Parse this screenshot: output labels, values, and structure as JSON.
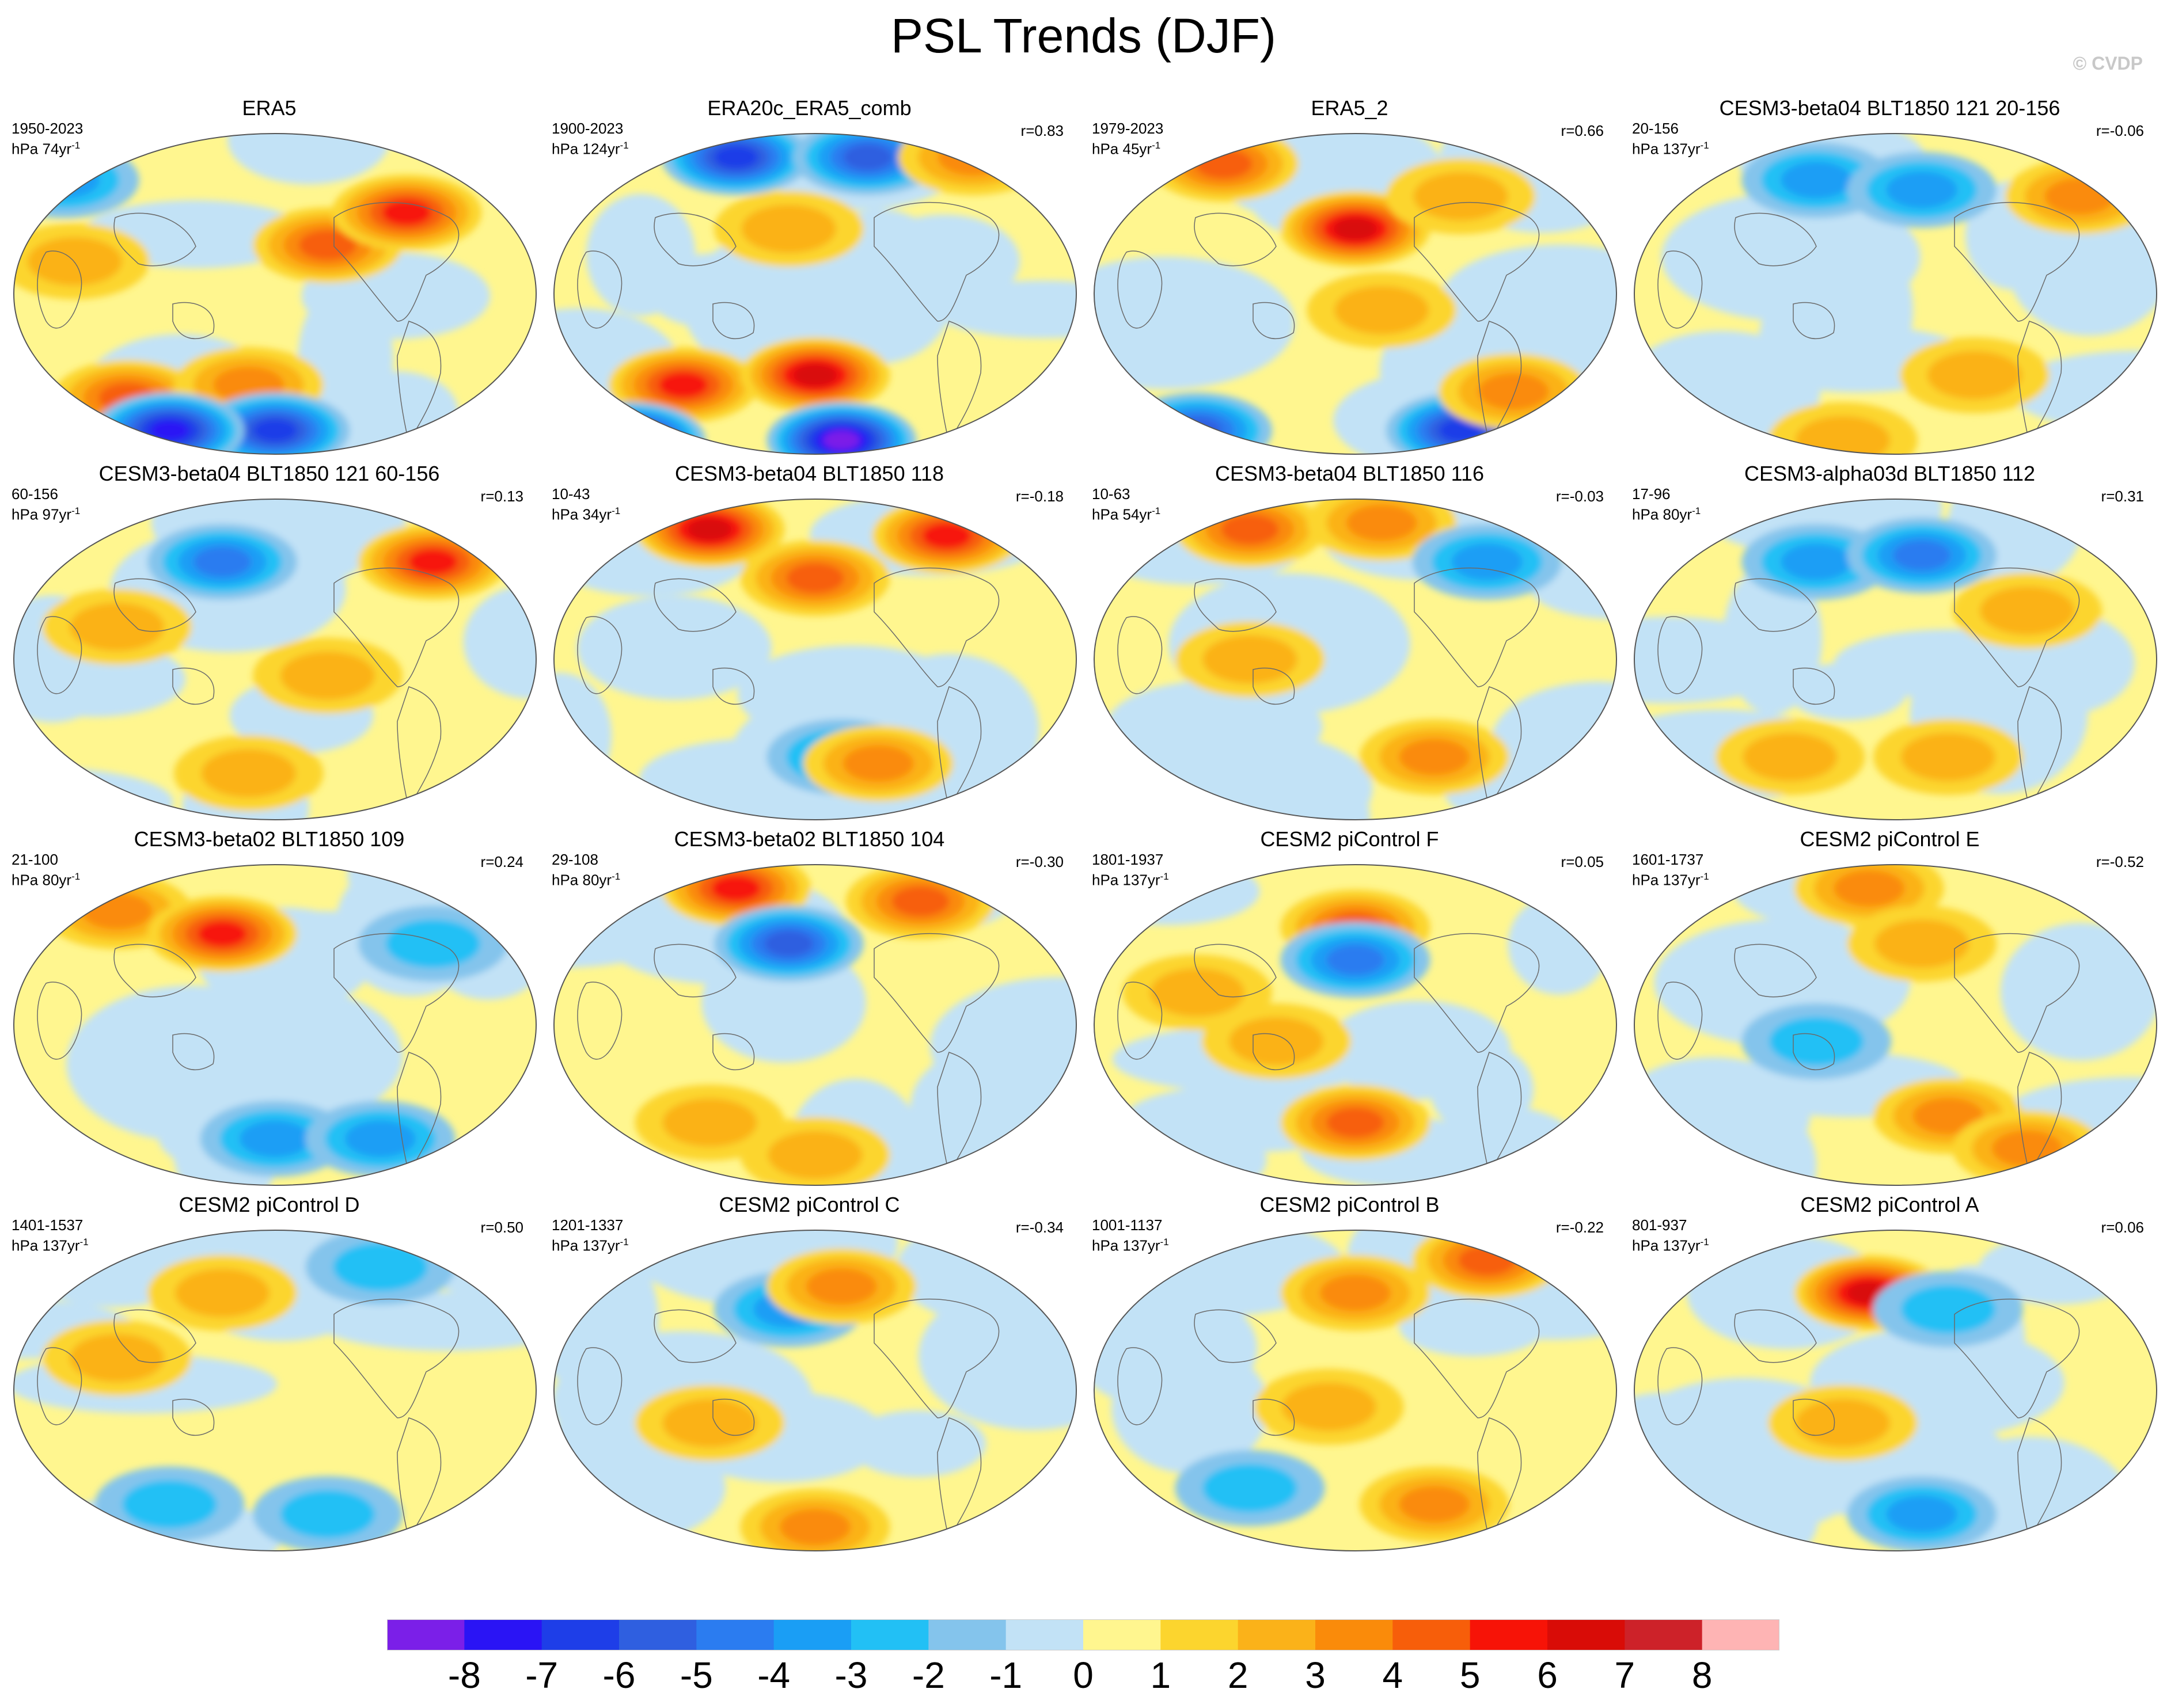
{
  "title": "PSL Trends (DJF)",
  "watermark": "© CVDP",
  "colorbar": {
    "labels": [
      "-8",
      "-7",
      "-6",
      "-5",
      "-4",
      "-3",
      "-2",
      "-1",
      "0",
      "1",
      "2",
      "3",
      "4",
      "5",
      "6",
      "7",
      "8"
    ],
    "colors": [
      "#7b1fe8",
      "#2a14f5",
      "#1e3ee8",
      "#2f5fe0",
      "#2b7cf0",
      "#1a9ef5",
      "#22c0f5",
      "#84c4ec",
      "#c2e2f6",
      "#fff68f",
      "#fcd52e",
      "#fbb219",
      "#fa8b0a",
      "#f75e0a",
      "#f71307",
      "#d90c07",
      "#cd2229",
      "#feb4b4"
    ]
  },
  "panels": [
    {
      "title": "ERA5",
      "years": "1950-2023",
      "unit": "hPa 74yr",
      "unit_exp": "-1",
      "r": ""
    },
    {
      "title": "ERA20c_ERA5_comb",
      "years": "1900-2023",
      "unit": "hPa 124yr",
      "unit_exp": "-1",
      "r": "r=0.83"
    },
    {
      "title": "ERA5_2",
      "years": "1979-2023",
      "unit": "hPa 45yr",
      "unit_exp": "-1",
      "r": "r=0.66"
    },
    {
      "title": "CESM3-beta04 BLT1850 121 20-156",
      "years": "20-156",
      "unit": "hPa 137yr",
      "unit_exp": "-1",
      "r": "r=-0.06"
    },
    {
      "title": "CESM3-beta04 BLT1850 121 60-156",
      "years": "60-156",
      "unit": "hPa 97yr",
      "unit_exp": "-1",
      "r": "r=0.13"
    },
    {
      "title": "CESM3-beta04 BLT1850 118",
      "years": "10-43",
      "unit": "hPa 34yr",
      "unit_exp": "-1",
      "r": "r=-0.18"
    },
    {
      "title": "CESM3-beta04 BLT1850 116",
      "years": "10-63",
      "unit": "hPa 54yr",
      "unit_exp": "-1",
      "r": "r=-0.03"
    },
    {
      "title": "CESM3-alpha03d BLT1850 112",
      "years": "17-96",
      "unit": "hPa 80yr",
      "unit_exp": "-1",
      "r": "r=0.31"
    },
    {
      "title": "CESM3-beta02 BLT1850 109",
      "years": "21-100",
      "unit": "hPa 80yr",
      "unit_exp": "-1",
      "r": "r=0.24"
    },
    {
      "title": "CESM3-beta02 BLT1850 104",
      "years": "29-108",
      "unit": "hPa 80yr",
      "unit_exp": "-1",
      "r": "r=-0.30"
    },
    {
      "title": "CESM2 piControl F",
      "years": "1801-1937",
      "unit": "hPa 137yr",
      "unit_exp": "-1",
      "r": "r=0.05"
    },
    {
      "title": "CESM2 piControl E",
      "years": "1601-1737",
      "unit": "hPa 137yr",
      "unit_exp": "-1",
      "r": "r=-0.52"
    },
    {
      "title": "CESM2 piControl D",
      "years": "1401-1537",
      "unit": "hPa 137yr",
      "unit_exp": "-1",
      "r": "r=0.50"
    },
    {
      "title": "CESM2 piControl C",
      "years": "1201-1337",
      "unit": "hPa 137yr",
      "unit_exp": "-1",
      "r": "r=-0.34"
    },
    {
      "title": "CESM2 piControl B",
      "years": "1001-1137",
      "unit": "hPa 137yr",
      "unit_exp": "-1",
      "r": "r=-0.22"
    },
    {
      "title": "CESM2 piControl A",
      "years": "801-937",
      "unit": "hPa 137yr",
      "unit_exp": "-1",
      "r": "r=0.06"
    }
  ]
}
